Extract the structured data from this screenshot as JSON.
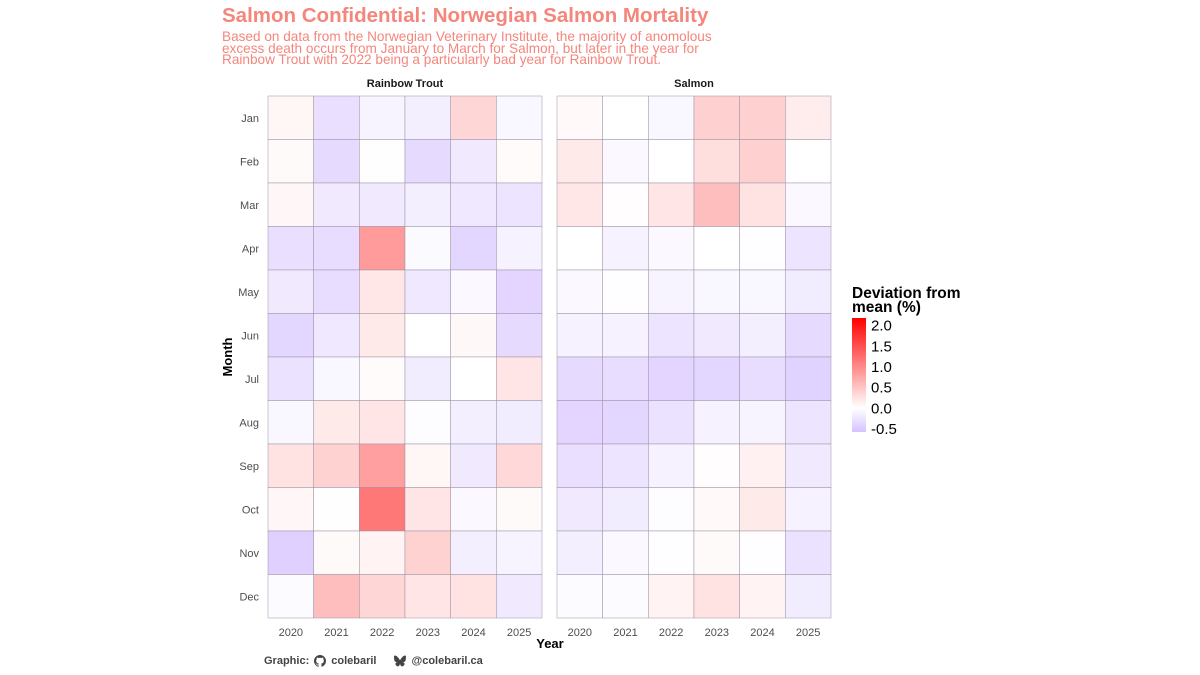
{
  "title": "Salmon Confidential: Norwegian Salmon Mortality",
  "subtitle_lines": [
    "Based on data from the Norwegian Veterinary Institute, the majority of anomolous",
    "excess death occurs from January to March for Salmon, but later in the year for",
    "Rainbow Trout with 2022 being a particularly bad year for Rainbow Trout."
  ],
  "caption": {
    "prefix": "Graphic:",
    "github_icon": "github-icon",
    "github_handle": "colebaril",
    "bluesky_icon": "bluesky-butterfly-icon",
    "bluesky_handle": "@colebaril.ca"
  },
  "colors": {
    "title": "#F4867C",
    "high": "#FF0000",
    "mid": "#FFFFFF",
    "low": "#D6C2FF",
    "cell_border": "#9A8FA0"
  },
  "chart_data": {
    "type": "heatmap",
    "xlabel": "Year",
    "ylabel": "Month",
    "x": [
      "2020",
      "2021",
      "2022",
      "2023",
      "2024",
      "2025"
    ],
    "y": [
      "Jan",
      "Feb",
      "Mar",
      "Apr",
      "May",
      "Jun",
      "Jul",
      "Aug",
      "Sep",
      "Oct",
      "Nov",
      "Dec"
    ],
    "legend": {
      "title_lines": [
        "Deviation from",
        "mean (%)"
      ],
      "ticks": [
        "2.0",
        "1.5",
        "1.0",
        "0.5",
        "0.0",
        "-0.5"
      ],
      "tick_values": [
        2.0,
        1.5,
        1.0,
        0.5,
        0.0,
        -0.5
      ],
      "range": [
        -0.58,
        2.17
      ],
      "placement": "right"
    },
    "facets": [
      {
        "name": "Rainbow Trout",
        "values": [
          [
            0.08,
            -0.3,
            -0.1,
            -0.15,
            0.35,
            -0.08
          ],
          [
            0.04,
            -0.35,
            0.01,
            -0.35,
            -0.2,
            0.03
          ],
          [
            0.07,
            -0.2,
            -0.2,
            -0.15,
            -0.22,
            -0.25
          ],
          [
            -0.3,
            -0.32,
            0.85,
            -0.05,
            -0.38,
            -0.12
          ],
          [
            -0.2,
            -0.32,
            0.2,
            -0.22,
            -0.06,
            -0.4
          ],
          [
            -0.38,
            -0.22,
            0.18,
            0.0,
            0.06,
            -0.35
          ],
          [
            -0.28,
            -0.08,
            0.03,
            -0.18,
            0.0,
            0.22
          ],
          [
            -0.08,
            0.18,
            0.22,
            -0.03,
            -0.15,
            -0.18
          ],
          [
            0.25,
            0.38,
            0.82,
            0.08,
            -0.2,
            0.32
          ],
          [
            0.07,
            0.01,
            1.15,
            0.22,
            -0.06,
            0.04
          ],
          [
            -0.45,
            0.04,
            0.1,
            0.38,
            -0.15,
            -0.1
          ],
          [
            -0.04,
            0.55,
            0.35,
            0.22,
            0.25,
            -0.2
          ]
        ]
      },
      {
        "name": "Salmon",
        "values": [
          [
            0.05,
            0.0,
            -0.08,
            0.4,
            0.4,
            0.15
          ],
          [
            0.18,
            -0.06,
            0.0,
            0.28,
            0.4,
            0.0
          ],
          [
            0.2,
            0.02,
            0.22,
            0.55,
            0.25,
            -0.06
          ],
          [
            0.0,
            -0.12,
            -0.06,
            0.0,
            -0.02,
            -0.25
          ],
          [
            -0.06,
            -0.02,
            -0.1,
            -0.08,
            -0.08,
            -0.18
          ],
          [
            -0.12,
            -0.12,
            -0.25,
            -0.2,
            -0.15,
            -0.35
          ],
          [
            -0.35,
            -0.32,
            -0.4,
            -0.38,
            -0.32,
            -0.42
          ],
          [
            -0.4,
            -0.38,
            -0.28,
            -0.12,
            -0.1,
            -0.25
          ],
          [
            -0.3,
            -0.25,
            -0.12,
            0.02,
            0.12,
            -0.2
          ],
          [
            -0.2,
            -0.18,
            -0.03,
            0.05,
            0.18,
            -0.12
          ],
          [
            -0.15,
            -0.06,
            -0.02,
            0.04,
            -0.02,
            -0.28
          ],
          [
            -0.04,
            -0.04,
            0.1,
            0.25,
            0.1,
            -0.18
          ]
        ]
      }
    ]
  }
}
